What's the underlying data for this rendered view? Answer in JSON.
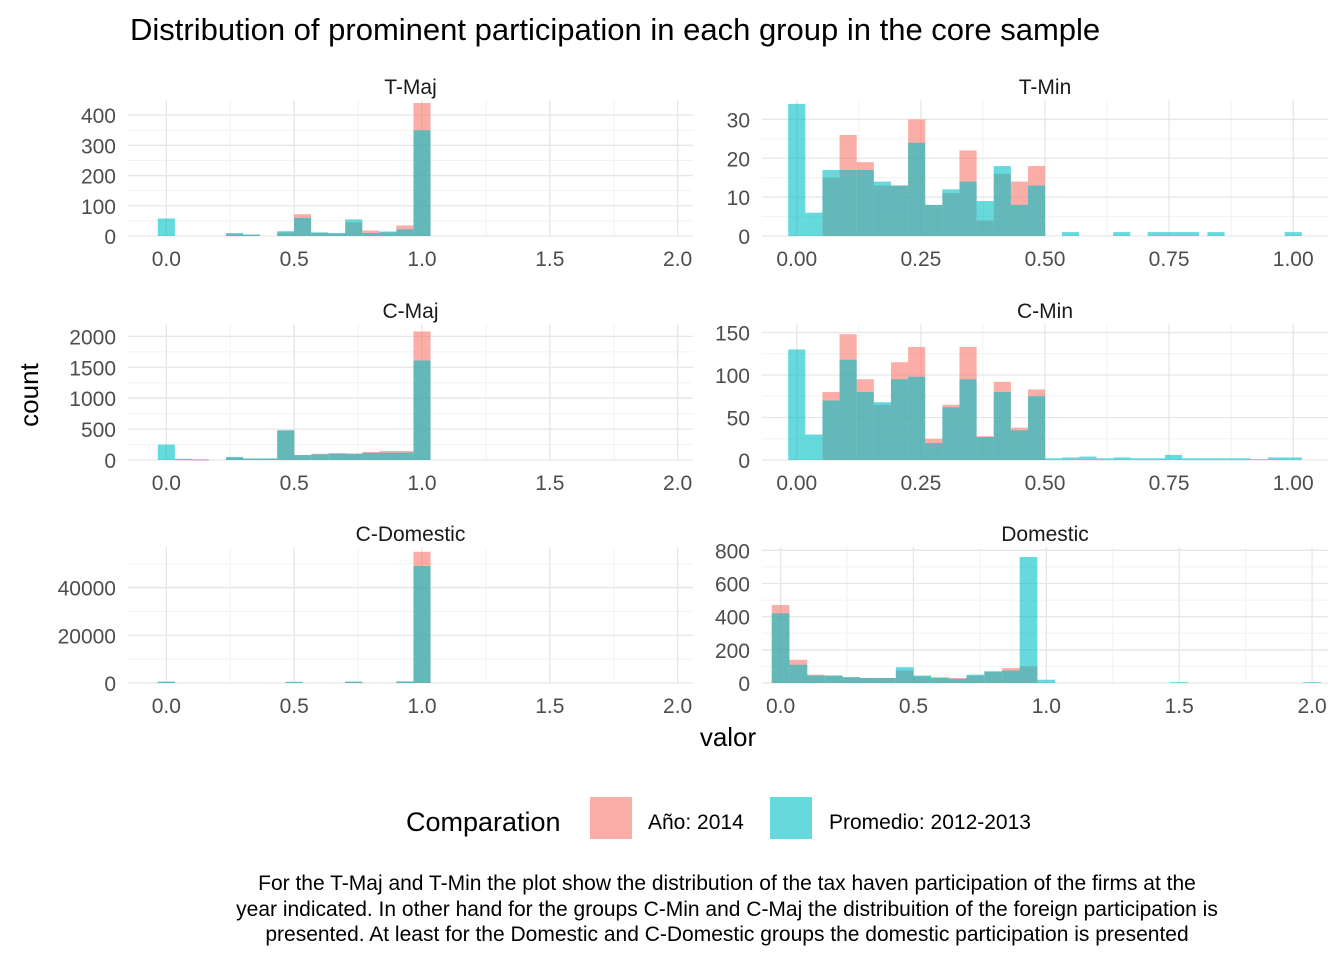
{
  "title": "Distribution of prominent participation in each group in the core sample",
  "xlabel": "valor",
  "ylabel": "count",
  "legend": {
    "title": "Comparation",
    "items": [
      {
        "label": "Año: 2014",
        "color": "#F8766D"
      },
      {
        "label": "Promedio: 2012-2013",
        "color": "#00BFC4"
      }
    ]
  },
  "caption": [
    "For the T-Maj and T-Min the plot show the distribution of the tax haven participation of the firms at the",
    "year indicated. In other hand for the groups C-Min and C-Maj the distribuition of the foreign participation is",
    "presented. At least for the Domestic and C-Domestic groups the domestic participation is presented"
  ],
  "chart_data": [
    {
      "type": "histogram",
      "panel": "T-Maj",
      "xlim": [
        -0.15,
        2.06
      ],
      "ylim": [
        0,
        450
      ],
      "xticks": [
        0.0,
        0.5,
        1.0,
        1.5,
        2.0
      ],
      "xtick_labels": [
        "0.0",
        "0.5",
        "1.0",
        "1.5",
        "2.0"
      ],
      "yticks": [
        0,
        100,
        200,
        300,
        400
      ],
      "ytick_labels": [
        "0",
        "100",
        "200",
        "300",
        "400"
      ],
      "bin_width": 0.0667,
      "x": [
        0.0,
        0.267,
        0.333,
        0.467,
        0.533,
        0.6,
        0.667,
        0.733,
        0.8,
        0.867,
        0.933,
        1.0
      ],
      "series": [
        {
          "name": "Año: 2014",
          "values": [
            0,
            6,
            4,
            12,
            72,
            10,
            8,
            45,
            18,
            12,
            35,
            440
          ]
        },
        {
          "name": "Promedio: 2012-2013",
          "values": [
            58,
            10,
            5,
            16,
            60,
            12,
            10,
            55,
            10,
            15,
            22,
            350
          ]
        }
      ]
    },
    {
      "type": "histogram",
      "panel": "T-Min",
      "xlim": [
        -0.07,
        1.07
      ],
      "ylim": [
        0,
        35
      ],
      "xticks": [
        0.0,
        0.25,
        0.5,
        0.75,
        1.0
      ],
      "xtick_labels": [
        "0.00",
        "0.25",
        "0.50",
        "0.75",
        "1.00"
      ],
      "yticks": [
        0,
        10,
        20,
        30
      ],
      "ytick_labels": [
        "0",
        "10",
        "20",
        "30"
      ],
      "bin_width": 0.0345,
      "x": [
        0.0,
        0.0345,
        0.069,
        0.1035,
        0.138,
        0.1725,
        0.207,
        0.2415,
        0.276,
        0.3105,
        0.345,
        0.3795,
        0.414,
        0.4485,
        0.483,
        0.5515,
        0.6545,
        0.724,
        0.7585,
        0.793,
        0.8445,
        1.0
      ],
      "series": [
        {
          "name": "Año: 2014",
          "values": [
            0,
            0,
            15,
            26,
            19,
            13,
            13,
            30,
            8,
            11,
            22,
            4,
            16,
            14,
            18,
            0,
            0,
            0,
            0,
            0,
            0,
            0
          ]
        },
        {
          "name": "Promedio: 2012-2013",
          "values": [
            34,
            6,
            17,
            17,
            17,
            14,
            13,
            24,
            8,
            12,
            14,
            9,
            18,
            8,
            13,
            1,
            1,
            1,
            1,
            1,
            1,
            1
          ]
        }
      ]
    },
    {
      "type": "histogram",
      "panel": "C-Maj",
      "xlim": [
        -0.15,
        2.06
      ],
      "ylim": [
        0,
        2200
      ],
      "xticks": [
        0.0,
        0.5,
        1.0,
        1.5,
        2.0
      ],
      "xtick_labels": [
        "0.0",
        "0.5",
        "1.0",
        "1.5",
        "2.0"
      ],
      "yticks": [
        0,
        500,
        1000,
        1500,
        2000
      ],
      "ytick_labels": [
        "0",
        "500",
        "1000",
        "1500",
        "2000"
      ],
      "bin_width": 0.0667,
      "x": [
        0.0,
        0.067,
        0.133,
        0.267,
        0.333,
        0.4,
        0.467,
        0.533,
        0.6,
        0.667,
        0.733,
        0.8,
        0.867,
        0.933,
        1.0
      ],
      "series": [
        {
          "name": "Año: 2014",
          "values": [
            0,
            10,
            5,
            40,
            20,
            20,
            480,
            80,
            100,
            110,
            105,
            130,
            145,
            145,
            2080
          ]
        },
        {
          "name": "Promedio: 2012-2013",
          "values": [
            250,
            20,
            10,
            50,
            25,
            25,
            480,
            80,
            90,
            105,
            100,
            115,
            120,
            120,
            1610
          ]
        }
      ]
    },
    {
      "type": "histogram",
      "panel": "C-Min",
      "xlim": [
        -0.07,
        1.07
      ],
      "ylim": [
        0,
        160
      ],
      "xticks": [
        0.0,
        0.25,
        0.5,
        0.75,
        1.0
      ],
      "xtick_labels": [
        "0.00",
        "0.25",
        "0.50",
        "0.75",
        "1.00"
      ],
      "yticks": [
        0,
        50,
        100,
        150
      ],
      "ytick_labels": [
        "0",
        "50",
        "100",
        "150"
      ],
      "bin_width": 0.0345,
      "x": [
        0.0,
        0.0345,
        0.069,
        0.1035,
        0.138,
        0.1725,
        0.207,
        0.2415,
        0.276,
        0.3105,
        0.345,
        0.3795,
        0.414,
        0.4485,
        0.483,
        0.5175,
        0.552,
        0.5865,
        0.621,
        0.6555,
        0.69,
        0.7245,
        0.759,
        0.7935,
        0.828,
        0.8625,
        0.897,
        0.9315,
        0.966,
        1.0
      ],
      "series": [
        {
          "name": "Año: 2014",
          "values": [
            0,
            0,
            80,
            148,
            95,
            65,
            115,
            133,
            25,
            65,
            133,
            28,
            92,
            38,
            83,
            0,
            0,
            0,
            0,
            0,
            0,
            0,
            0,
            0,
            0,
            0,
            0,
            0,
            0,
            0
          ]
        },
        {
          "name": "Promedio: 2012-2013",
          "values": [
            130,
            30,
            70,
            118,
            80,
            68,
            95,
            98,
            20,
            62,
            95,
            27,
            80,
            35,
            75,
            2,
            3,
            4,
            2,
            3,
            2,
            2,
            6,
            2,
            2,
            2,
            2,
            1,
            3,
            3
          ]
        }
      ]
    },
    {
      "type": "histogram",
      "panel": "C-Domestic",
      "xlim": [
        -0.15,
        2.06
      ],
      "ylim": [
        0,
        57000
      ],
      "xticks": [
        0.0,
        0.5,
        1.0,
        1.5,
        2.0
      ],
      "xtick_labels": [
        "0.0",
        "0.5",
        "1.0",
        "1.5",
        "2.0"
      ],
      "yticks": [
        0,
        20000,
        40000
      ],
      "ytick_labels": [
        "0",
        "20000",
        "40000"
      ],
      "bin_width": 0.0667,
      "x": [
        0.0,
        0.5,
        0.733,
        0.933,
        1.0
      ],
      "series": [
        {
          "name": "Año: 2014",
          "values": [
            400,
            400,
            500,
            600,
            55000
          ]
        },
        {
          "name": "Promedio: 2012-2013",
          "values": [
            600,
            500,
            600,
            700,
            49000
          ]
        }
      ]
    },
    {
      "type": "histogram",
      "panel": "Domestic",
      "xlim": [
        -0.07,
        2.06
      ],
      "ylim": [
        0,
        820
      ],
      "xticks": [
        0.0,
        0.5,
        1.0,
        1.5,
        2.0
      ],
      "xtick_labels": [
        "0.0",
        "0.5",
        "1.0",
        "1.5",
        "2.0"
      ],
      "yticks": [
        0,
        200,
        400,
        600,
        800
      ],
      "ytick_labels": [
        "0",
        "200",
        "400",
        "600",
        "800"
      ],
      "bin_width": 0.0667,
      "x": [
        0.0,
        0.067,
        0.133,
        0.2,
        0.267,
        0.333,
        0.4,
        0.467,
        0.533,
        0.6,
        0.667,
        0.733,
        0.8,
        0.867,
        0.933,
        1.0,
        1.067,
        1.5,
        2.0
      ],
      "series": [
        {
          "name": "Año: 2014",
          "values": [
            470,
            140,
            50,
            45,
            35,
            30,
            30,
            75,
            40,
            35,
            30,
            45,
            70,
            90,
            100,
            0,
            0,
            0,
            0
          ]
        },
        {
          "name": "Promedio: 2012-2013",
          "values": [
            420,
            110,
            45,
            45,
            35,
            30,
            30,
            95,
            45,
            30,
            25,
            50,
            70,
            75,
            760,
            20,
            0,
            5,
            5
          ]
        }
      ]
    }
  ]
}
